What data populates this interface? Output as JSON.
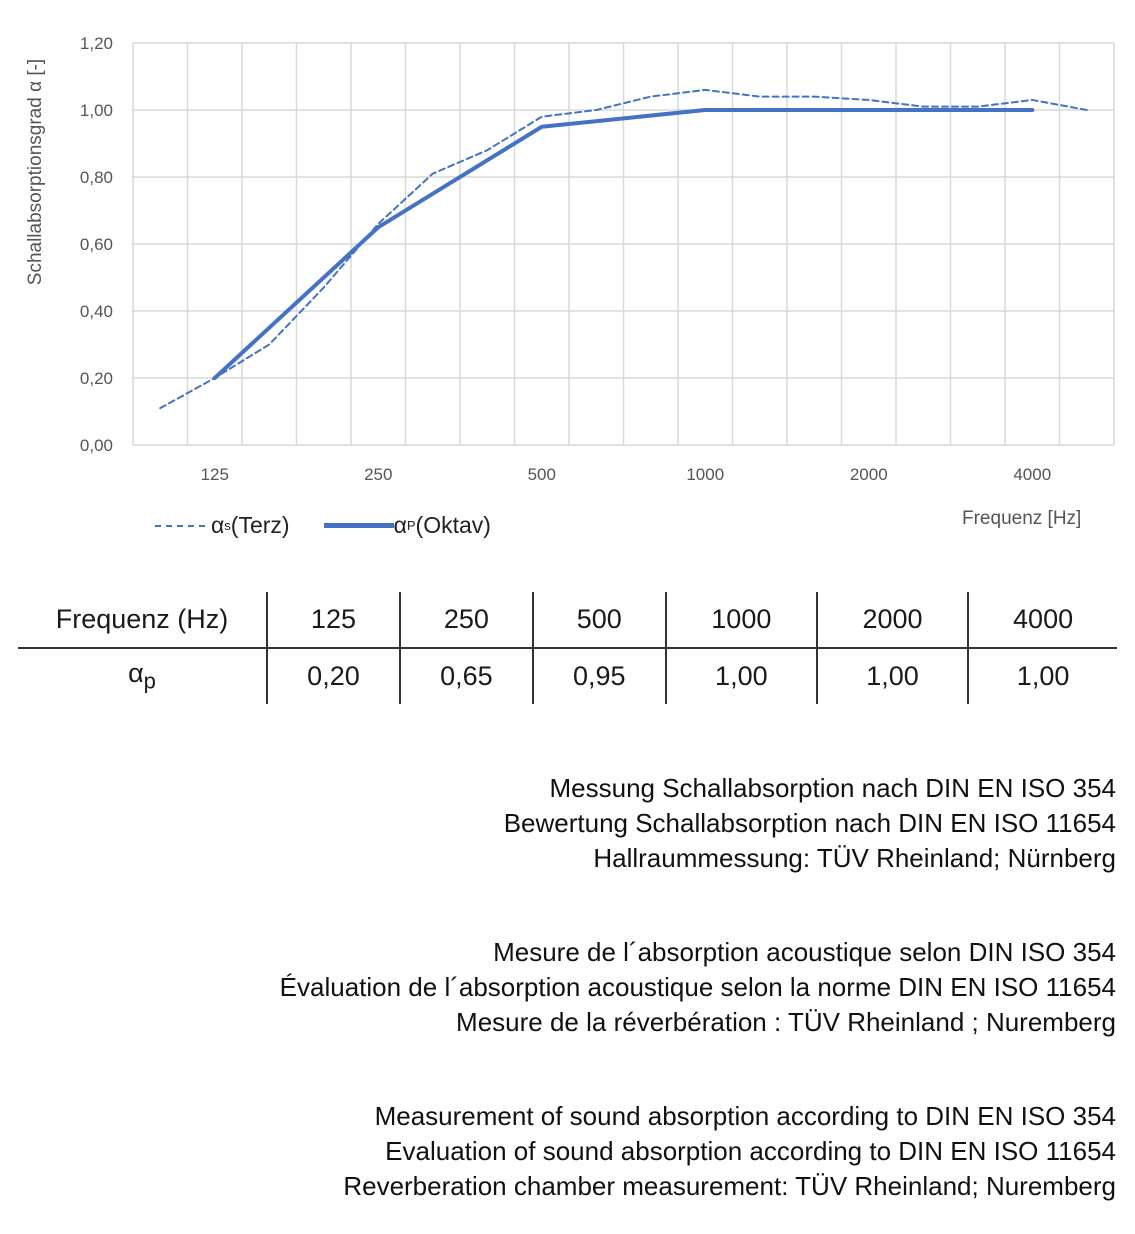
{
  "chart_data": {
    "type": "line",
    "ylabel": "Schallabsorptionsgrad α [-]",
    "xlabel": "Frequenz [Hz]",
    "ylim": [
      0,
      1.2
    ],
    "yticks": [
      "0,00",
      "0,20",
      "0,40",
      "0,60",
      "0,80",
      "1,00",
      "1,20"
    ],
    "categories": [
      "100",
      "125",
      "160",
      "200",
      "250",
      "315",
      "400",
      "500",
      "630",
      "800",
      "1000",
      "1250",
      "1600",
      "2000",
      "2500",
      "3150",
      "4000",
      "5000"
    ],
    "xtick_labels": {
      "125": "125",
      "250": "250",
      "500": "500",
      "1000": "1000",
      "2000": "2000",
      "4000": "4000"
    },
    "grid": true,
    "legend_position": "bottom-left",
    "series": [
      {
        "name": "αs (Terz)",
        "legend_main": "α",
        "legend_sub": "s",
        "legend_rest": " (Terz)",
        "style": "dashed",
        "color": "#4472c4",
        "values": [
          0.11,
          0.2,
          0.3,
          0.47,
          0.66,
          0.81,
          0.88,
          0.98,
          1.0,
          1.04,
          1.06,
          1.04,
          1.04,
          1.03,
          1.01,
          1.01,
          1.03,
          1.0
        ]
      },
      {
        "name": "αp (Oktav)",
        "legend_main": "α",
        "legend_sub": "P",
        "legend_rest": " (Oktav)",
        "style": "solid",
        "color": "#4472c4",
        "x": [
          "125",
          "250",
          "500",
          "1000",
          "2000",
          "4000"
        ],
        "values": [
          0.2,
          0.65,
          0.95,
          1.0,
          1.0,
          1.0
        ]
      }
    ]
  },
  "table": {
    "header": [
      "Frequenz (Hz)",
      "125",
      "250",
      "500",
      "1000",
      "2000",
      "4000"
    ],
    "row_label_main": "α",
    "row_label_sub": "p",
    "row": [
      "0,20",
      "0,65",
      "0,95",
      "1,00",
      "1,00",
      "1,00"
    ]
  },
  "notes": [
    [
      "Messung Schallabsorption nach DIN EN ISO 354",
      "Bewertung Schallabsorption nach DIN EN ISO 11654",
      "Hallraummessung: TÜV Rheinland; Nürnberg"
    ],
    [
      "Mesure de l´absorption acoustique selon DIN ISO 354",
      "Évaluation de l´absorption acoustique selon la norme DIN EN ISO 11654",
      "Mesure de la réverbération : TÜV Rheinland ; Nuremberg"
    ],
    [
      "Measurement of sound absorption according to DIN EN ISO 354",
      "Evaluation of sound absorption according to DIN EN ISO 11654",
      "Reverberation chamber measurement: TÜV Rheinland; Nuremberg"
    ]
  ]
}
